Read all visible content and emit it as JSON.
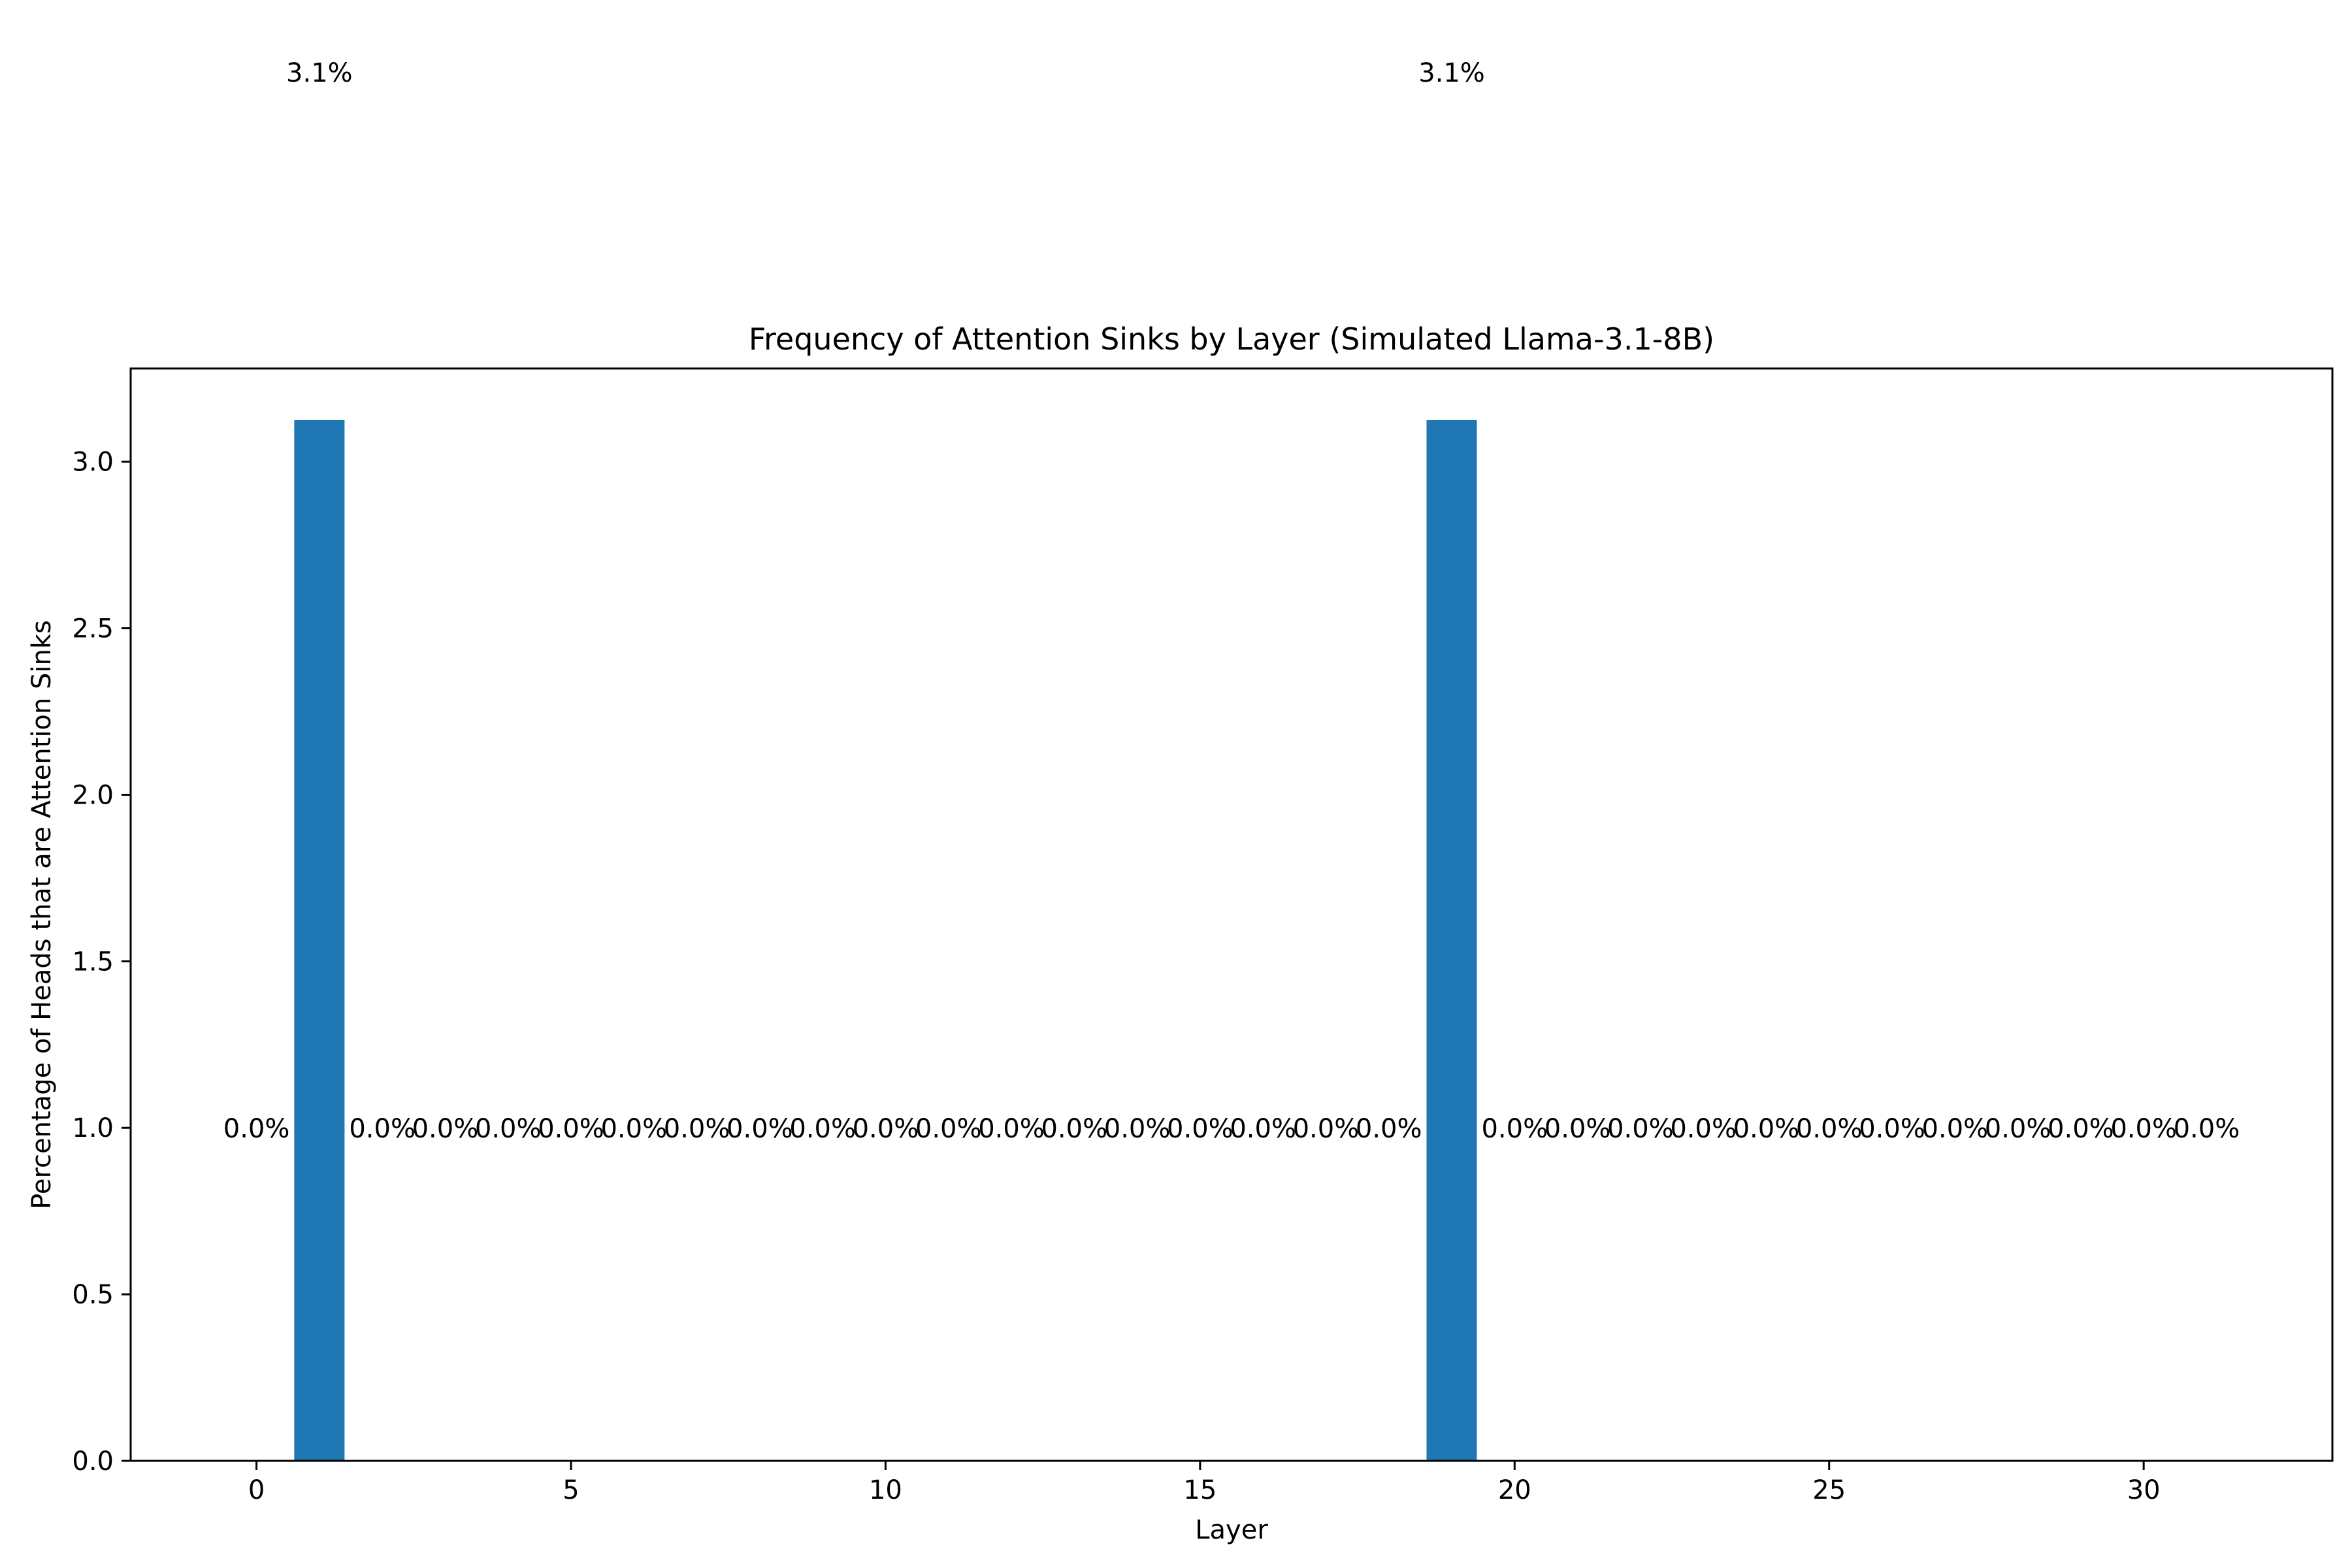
{
  "chart_data": {
    "type": "bar",
    "title": "Frequency of Attention Sinks by Layer (Simulated Llama-3.1-8B)",
    "xlabel": "Layer",
    "ylabel": "Percentage of Heads that are Attention Sinks",
    "x": [
      0,
      1,
      2,
      3,
      4,
      5,
      6,
      7,
      8,
      9,
      10,
      11,
      12,
      13,
      14,
      15,
      16,
      17,
      18,
      19,
      20,
      21,
      22,
      23,
      24,
      25,
      26,
      27,
      28,
      29,
      30,
      31
    ],
    "values": [
      0,
      3.125,
      0,
      0,
      0,
      0,
      0,
      0,
      0,
      0,
      0,
      0,
      0,
      0,
      0,
      0,
      0,
      0,
      0,
      3.125,
      0,
      0,
      0,
      0,
      0,
      0,
      0,
      0,
      0,
      0,
      0,
      0
    ],
    "labels": [
      "0.0%",
      "3.1%",
      "0.0%",
      "0.0%",
      "0.0%",
      "0.0%",
      "0.0%",
      "0.0%",
      "0.0%",
      "0.0%",
      "0.0%",
      "0.0%",
      "0.0%",
      "0.0%",
      "0.0%",
      "0.0%",
      "0.0%",
      "0.0%",
      "0.0%",
      "3.1%",
      "0.0%",
      "0.0%",
      "0.0%",
      "0.0%",
      "0.0%",
      "0.0%",
      "0.0%",
      "0.0%",
      "0.0%",
      "0.0%",
      "0.0%",
      "0.0%"
    ],
    "xticks": [
      "0",
      "5",
      "10",
      "15",
      "20",
      "25",
      "30"
    ],
    "xtick_values": [
      0,
      5,
      10,
      15,
      20,
      25,
      30
    ],
    "yticks": [
      "0.0",
      "0.5",
      "1.0",
      "1.5",
      "2.0",
      "2.5",
      "3.0"
    ],
    "ytick_values": [
      0,
      0.5,
      1,
      1.5,
      2,
      2.5,
      3
    ],
    "xlim": [
      -2,
      33
    ],
    "ylim": [
      0,
      3.28
    ],
    "grid": false,
    "legend": "none",
    "bar_color": "#1f77b4"
  }
}
